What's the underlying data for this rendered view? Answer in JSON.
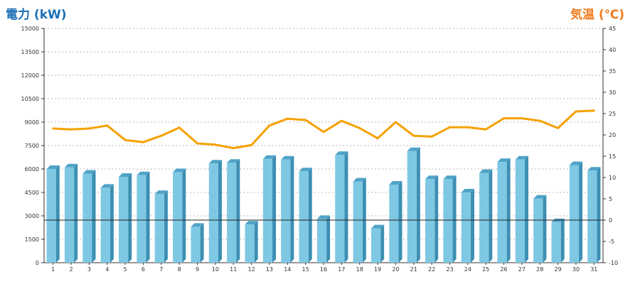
{
  "chart_data": {
    "type": "bar",
    "left_axis_title": "電力 (kW)",
    "right_axis_title": "気温 (℃)",
    "categories": [
      "1",
      "2",
      "3",
      "4",
      "5",
      "6",
      "7",
      "8",
      "9",
      "10",
      "11",
      "12",
      "13",
      "14",
      "15",
      "16",
      "17",
      "18",
      "19",
      "20",
      "21",
      "22",
      "23",
      "24",
      "25",
      "26",
      "27",
      "28",
      "29",
      "30",
      "31"
    ],
    "series": [
      {
        "axis": "left",
        "type": "bar",
        "values": [
          6000,
          6100,
          5700,
          4800,
          5500,
          5600,
          4400,
          5800,
          2300,
          6350,
          6400,
          2450,
          6650,
          6600,
          5850,
          2800,
          6900,
          5200,
          2200,
          5000,
          7150,
          5350,
          5350,
          4500,
          5750,
          6450,
          6600,
          4100,
          2600,
          6250,
          5900
        ],
        "color": "#7ec8e3"
      },
      {
        "axis": "right",
        "type": "line",
        "values": [
          21.5,
          21.3,
          21.5,
          22.2,
          18.8,
          18.3,
          19.8,
          21.7,
          18.0,
          17.7,
          16.9,
          17.6,
          22.2,
          23.8,
          23.5,
          20.7,
          23.3,
          21.6,
          19.2,
          23.0,
          19.8,
          19.6,
          21.8,
          21.8,
          21.3,
          23.9,
          23.9,
          23.3,
          21.6,
          25.5,
          25.7
        ],
        "color": "#f5a100"
      }
    ],
    "left_axis": {
      "ylim": [
        0,
        15000
      ],
      "ticks": [
        0,
        1500,
        3000,
        4500,
        6000,
        7500,
        9000,
        10500,
        12000,
        13500,
        15000
      ]
    },
    "right_axis": {
      "ylim": [
        -10,
        45
      ],
      "ticks": [
        -10,
        -5,
        0,
        5,
        10,
        15,
        20,
        25,
        30,
        35,
        40,
        45
      ]
    },
    "grid": true,
    "zero_reference_line": 0
  }
}
